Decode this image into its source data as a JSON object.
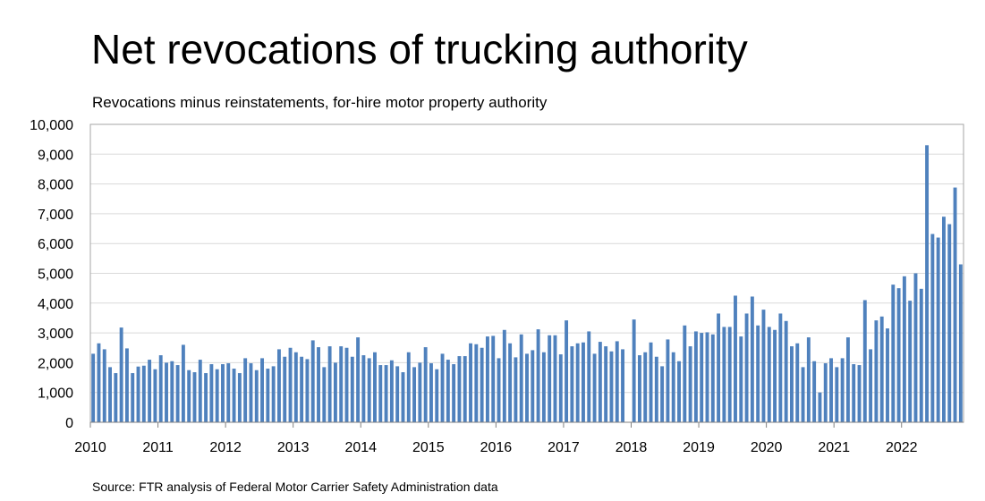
{
  "chart_data": {
    "type": "bar",
    "title": "Net revocations of trucking authority",
    "subtitle": "Revocations minus reinstatements, for-hire motor property authority",
    "source": "Source: FTR analysis of Federal Motor Carrier Safety Administration data",
    "xlabel": "",
    "ylabel": "",
    "ylim": [
      0,
      10000
    ],
    "y_ticks": [
      "0",
      "1,000",
      "2,000",
      "3,000",
      "4,000",
      "5,000",
      "6,000",
      "7,000",
      "8,000",
      "9,000",
      "10,000"
    ],
    "x_tick_labels": [
      "2010",
      "2011",
      "2012",
      "2013",
      "2014",
      "2015",
      "2016",
      "2017",
      "2018",
      "2019",
      "2020",
      "2021",
      "2022"
    ],
    "grid": true,
    "bar_color": "#4F81BD",
    "start": "2010-01",
    "values": [
      2300,
      2650,
      2450,
      1850,
      1650,
      3180,
      2480,
      1650,
      1870,
      1900,
      2100,
      1780,
      2250,
      2000,
      2050,
      1920,
      2600,
      1750,
      1680,
      2100,
      1650,
      1950,
      1780,
      1950,
      1980,
      1800,
      1650,
      2150,
      1980,
      1750,
      2150,
      1800,
      1880,
      2450,
      2200,
      2500,
      2350,
      2200,
      2120,
      2750,
      2520,
      1850,
      2550,
      2000,
      2550,
      2500,
      2200,
      2850,
      2250,
      2150,
      2350,
      1920,
      1920,
      2080,
      1880,
      1680,
      2350,
      1850,
      2000,
      2520,
      1980,
      1780,
      2300,
      2100,
      1950,
      2220,
      2220,
      2650,
      2620,
      2500,
      2880,
      2900,
      2150,
      3100,
      2650,
      2180,
      2950,
      2300,
      2420,
      3120,
      2350,
      2920,
      2920,
      2280,
      3420,
      2550,
      2650,
      2680,
      3050,
      2300,
      2700,
      2550,
      2380,
      2720,
      2450,
      0,
      3450,
      2250,
      2350,
      2680,
      2200,
      1880,
      2780,
      2350,
      2050,
      3250,
      2550,
      3050,
      3000,
      3020,
      2950,
      3650,
      3200,
      3200,
      4250,
      2880,
      3650,
      4220,
      3250,
      3780,
      3200,
      3100,
      3650,
      3400,
      2550,
      2650,
      1850,
      2850,
      2050,
      1000,
      1980,
      2150,
      1850,
      2150,
      2850,
      1950,
      1920,
      4100,
      2450,
      3420,
      3550,
      3150,
      4620,
      4500,
      4900,
      4080,
      5000,
      4480,
      9300,
      6320,
      6200,
      6900,
      6650,
      7880,
      5300
    ]
  }
}
